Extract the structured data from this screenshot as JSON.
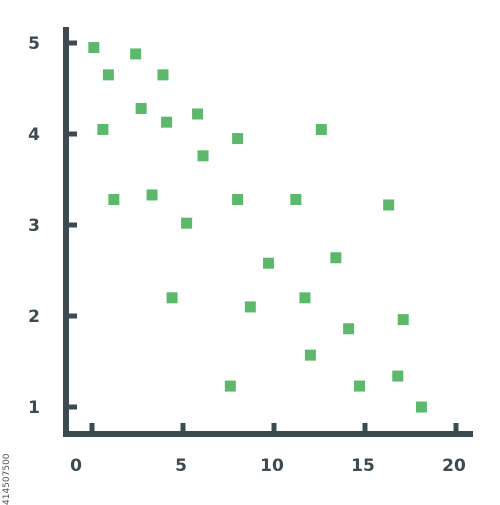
{
  "chart_data": {
    "type": "scatter",
    "title": "",
    "xlabel": "",
    "ylabel": "",
    "xlim": [
      -1,
      20.5
    ],
    "ylim": [
      0.7,
      5.2
    ],
    "x_ticks": [
      0,
      5,
      10,
      15,
      20
    ],
    "y_ticks": [
      1,
      2,
      3,
      4,
      5
    ],
    "x_tick_labels": [
      "0",
      "5",
      "10",
      "15",
      "20"
    ],
    "y_tick_labels": [
      "1",
      "2",
      "3",
      "4",
      "5"
    ],
    "grid": false,
    "marker": "square",
    "colors": {
      "axis": "#3d4a52",
      "points": "#5cb86a"
    },
    "points": [
      {
        "x": 0.1,
        "y": 4.95
      },
      {
        "x": 0.9,
        "y": 4.65
      },
      {
        "x": 0.6,
        "y": 4.05
      },
      {
        "x": 1.2,
        "y": 3.28
      },
      {
        "x": 2.4,
        "y": 4.88
      },
      {
        "x": 2.7,
        "y": 4.28
      },
      {
        "x": 3.3,
        "y": 3.33
      },
      {
        "x": 3.9,
        "y": 4.65
      },
      {
        "x": 4.1,
        "y": 4.13
      },
      {
        "x": 4.4,
        "y": 2.2
      },
      {
        "x": 5.2,
        "y": 3.02
      },
      {
        "x": 5.8,
        "y": 4.22
      },
      {
        "x": 6.1,
        "y": 3.76
      },
      {
        "x": 7.6,
        "y": 1.23
      },
      {
        "x": 8.0,
        "y": 3.95
      },
      {
        "x": 8.0,
        "y": 3.28
      },
      {
        "x": 8.7,
        "y": 2.1
      },
      {
        "x": 9.7,
        "y": 2.58
      },
      {
        "x": 11.2,
        "y": 3.28
      },
      {
        "x": 11.7,
        "y": 2.2
      },
      {
        "x": 12.0,
        "y": 1.57
      },
      {
        "x": 12.6,
        "y": 4.05
      },
      {
        "x": 13.4,
        "y": 2.64
      },
      {
        "x": 14.1,
        "y": 1.86
      },
      {
        "x": 14.7,
        "y": 1.23
      },
      {
        "x": 16.3,
        "y": 3.22
      },
      {
        "x": 16.8,
        "y": 1.34
      },
      {
        "x": 17.1,
        "y": 1.96
      },
      {
        "x": 18.1,
        "y": 1.0
      }
    ]
  },
  "watermark": {
    "id_text": "414507500"
  }
}
